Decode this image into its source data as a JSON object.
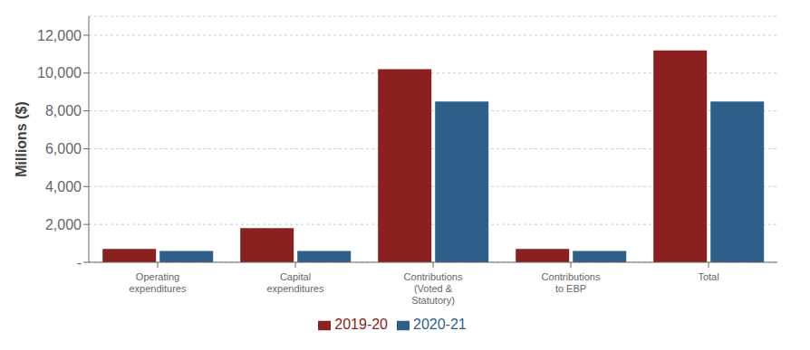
{
  "chart_data": {
    "type": "bar",
    "categories": [
      "Operating\nexpenditures",
      "Capital\nexpenditures",
      "Contributions\n(Voted &\nStatutory)",
      "Contributions\nto EBP",
      "Total"
    ],
    "series": [
      {
        "name": "2019-20",
        "color": "#8B2020",
        "values": [
          700,
          1800,
          10200,
          700,
          11200
        ]
      },
      {
        "name": "2020-21",
        "color": "#2E5F8A",
        "values": [
          600,
          600,
          8500,
          600,
          8500
        ]
      }
    ],
    "ylabel": "Millions ($)",
    "ylim": [
      0,
      13000
    ],
    "yticks": [
      {
        "value": 0,
        "label": "-"
      },
      {
        "value": 2000,
        "label": "2,000"
      },
      {
        "value": 4000,
        "label": "4,000"
      },
      {
        "value": 6000,
        "label": "6,000"
      },
      {
        "value": 8000,
        "label": "8,000"
      },
      {
        "value": 10000,
        "label": "10,000"
      },
      {
        "value": 12000,
        "label": "12,000"
      }
    ],
    "grid": true,
    "legend": "bottom"
  }
}
